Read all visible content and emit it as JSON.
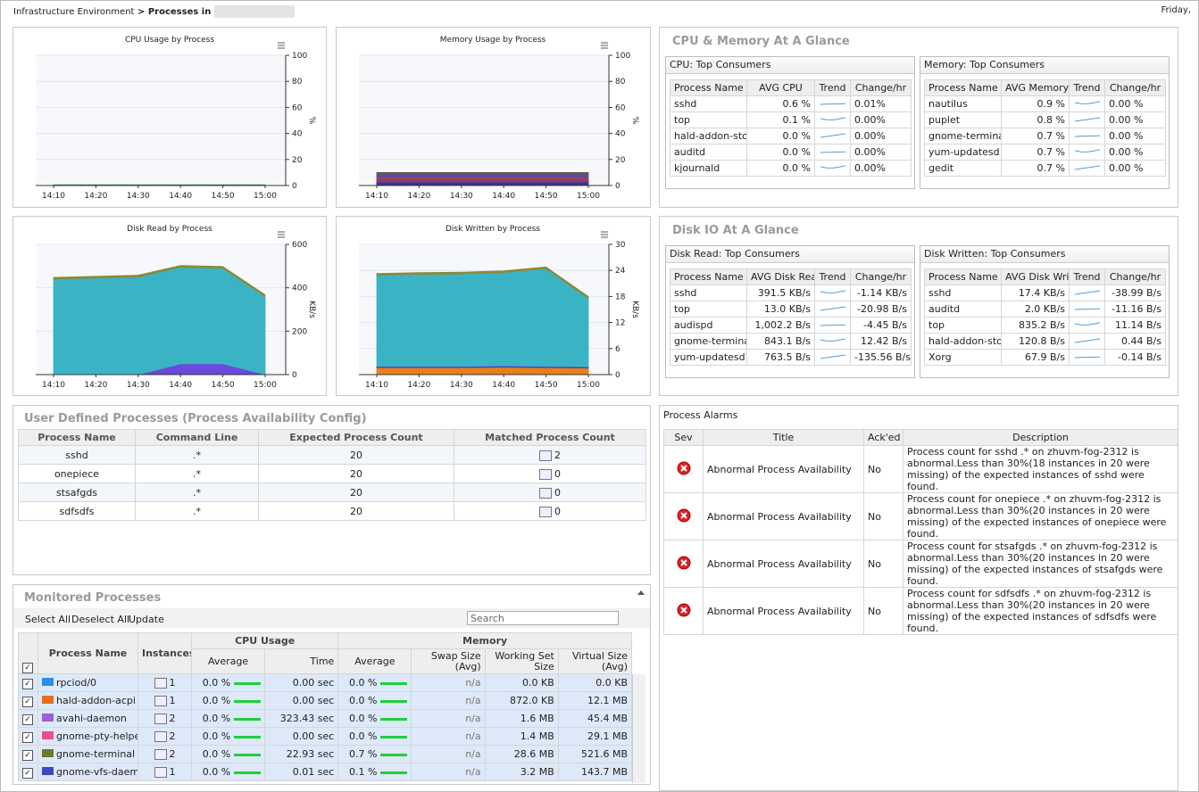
{
  "breadcrumb": {
    "root": "Infrastructure Environment",
    "current": "Processes in"
  },
  "date": "Friday,",
  "charts": [
    {
      "type": "area",
      "title": "CPU Usage by Process",
      "x": [
        "14:10",
        "14:20",
        "14:30",
        "14:40",
        "14:50",
        "15:00"
      ],
      "ylim": [
        0,
        100
      ],
      "yticks": [
        0,
        20,
        40,
        60,
        80,
        100
      ],
      "y_label": "%",
      "stacked": true,
      "series": [
        {
          "color": "#2e8b57",
          "values": [
            0.6,
            0.6,
            0.6,
            0.6,
            0.6,
            0.6
          ]
        }
      ]
    },
    {
      "type": "area",
      "title": "Memory Usage by Process",
      "x": [
        "14:10",
        "14:20",
        "14:30",
        "14:40",
        "14:50",
        "15:00"
      ],
      "ylim": [
        0,
        100
      ],
      "yticks": [
        0,
        20,
        40,
        60,
        80,
        100
      ],
      "y_label": "%",
      "stacked": true,
      "series": [
        {
          "color": "#34348f",
          "values": [
            2.5,
            2.5,
            2.5,
            2.5,
            2.5,
            2.5
          ]
        },
        {
          "color": "#7d3a86",
          "values": [
            2,
            2,
            2,
            2,
            2,
            2
          ]
        },
        {
          "color": "#9c4248",
          "values": [
            2,
            2,
            2,
            2,
            2,
            2
          ]
        },
        {
          "color": "#5a4aa8",
          "values": [
            2.5,
            2.5,
            2.5,
            2.5,
            2.5,
            2.5
          ]
        },
        {
          "color": "#6b5a3a",
          "values": [
            1,
            1,
            1,
            1,
            1,
            1
          ]
        }
      ]
    },
    {
      "type": "area",
      "title": "Disk Read by Process",
      "x": [
        "14:10",
        "14:20",
        "14:30",
        "14:40",
        "14:50",
        "15:00"
      ],
      "ylim": [
        0,
        600
      ],
      "yticks": [
        0,
        200,
        400,
        600
      ],
      "y_label": "KB/s",
      "stacked": true,
      "series": [
        {
          "color": "#6a4ad8",
          "values": [
            0,
            0,
            0,
            50,
            50,
            0
          ]
        },
        {
          "color": "#3ab4c4",
          "values": [
            440,
            445,
            450,
            445,
            440,
            360
          ]
        },
        {
          "color": "#8a8a3a",
          "values": [
            8,
            8,
            8,
            8,
            8,
            8
          ]
        }
      ]
    },
    {
      "type": "area",
      "title": "Disk Written by Process",
      "x": [
        "14:10",
        "14:20",
        "14:30",
        "14:40",
        "14:50",
        "15:00"
      ],
      "ylim": [
        0,
        30
      ],
      "yticks": [
        0,
        6,
        12,
        18,
        24,
        30
      ],
      "y_label": "KB/s",
      "stacked": true,
      "series": [
        {
          "color": "#e8801a",
          "values": [
            1.6,
            1.6,
            1.6,
            1.7,
            1.6,
            1.5
          ]
        },
        {
          "color": "#5a3ab8",
          "values": [
            0.3,
            0.3,
            0.3,
            0.3,
            0.3,
            0.3
          ]
        },
        {
          "color": "#3ab4c4",
          "values": [
            21,
            21.2,
            21.3,
            21.5,
            22.5,
            15.8
          ]
        },
        {
          "color": "#8a8a3a",
          "values": [
            0.4,
            0.4,
            0.4,
            0.4,
            0.4,
            0.4
          ]
        }
      ]
    }
  ],
  "cpu_memory_glance": {
    "title": "CPU & Memory At A Glance",
    "tables": [
      {
        "title": "CPU: Top Consumers",
        "columns": [
          "Process Name",
          "AVG CPU",
          "Trend",
          "Change/hr"
        ],
        "rows": [
          [
            "sshd",
            "0.6 %",
            "0.01%"
          ],
          [
            "top",
            "0.1 %",
            "0.00%"
          ],
          [
            "hald-addon-stor",
            "0.0 %",
            "0.00%"
          ],
          [
            "auditd",
            "0.0 %",
            "0.00%"
          ],
          [
            "kjournald",
            "0.0 %",
            "0.00%"
          ]
        ]
      },
      {
        "title": "Memory: Top Consumers",
        "columns": [
          "Process Name",
          "AVG Memory",
          "Trend",
          "Change/hr"
        ],
        "rows": [
          [
            "nautilus",
            "0.9 %",
            "0.00 %"
          ],
          [
            "puplet",
            "0.8 %",
            "0.00 %"
          ],
          [
            "gnome-terminal",
            "0.7 %",
            "0.00 %"
          ],
          [
            "yum-updatesd",
            "0.7 %",
            "0.00 %"
          ],
          [
            "gedit",
            "0.7 %",
            "0.00 %"
          ]
        ]
      }
    ]
  },
  "disk_glance": {
    "title": "Disk IO At A Glance",
    "tables": [
      {
        "title": "Disk Read: Top Consumers",
        "columns": [
          "Process Name",
          "AVG Disk Read",
          "Trend",
          "Change/hr"
        ],
        "rows": [
          [
            "sshd",
            "391.5 KB/s",
            "-1.14 KB/s"
          ],
          [
            "top",
            "13.0 KB/s",
            "-20.98 B/s"
          ],
          [
            "audispd",
            "1,002.2 B/s",
            "-4.45 B/s"
          ],
          [
            "gnome-terminal",
            "843.1 B/s",
            "12.42 B/s"
          ],
          [
            "yum-updatesd",
            "763.5 B/s",
            "-135.56 B/s"
          ]
        ]
      },
      {
        "title": "Disk Written: Top Consumers",
        "columns": [
          "Process Name",
          "AVG Disk Written",
          "Trend",
          "Change/hr"
        ],
        "rows": [
          [
            "sshd",
            "17.4 KB/s",
            "-38.99 B/s"
          ],
          [
            "auditd",
            "2.0 KB/s",
            "-11.16 B/s"
          ],
          [
            "top",
            "835.2 B/s",
            "11.14 B/s"
          ],
          [
            "hald-addon-stor",
            "120.8 B/s",
            "0.44 B/s"
          ],
          [
            "Xorg",
            "67.9 B/s",
            "-0.14 B/s"
          ]
        ]
      }
    ]
  },
  "user_defined": {
    "title": "User Defined Processes (Process Availability Config)",
    "columns": [
      "Process Name",
      "Command Line",
      "Expected Process Count",
      "Matched Process Count"
    ],
    "rows": [
      [
        "sshd",
        ".*",
        "20",
        "2"
      ],
      [
        "onepiece",
        ".*",
        "20",
        "0"
      ],
      [
        "stsafgds",
        ".*",
        "20",
        "0"
      ],
      [
        "sdfsdfs",
        ".*",
        "20",
        "0"
      ]
    ]
  },
  "alarms": {
    "title": "Process Alarms",
    "columns": [
      "Sev",
      "Title",
      "Ack'ed",
      "Description"
    ],
    "rows": [
      {
        "title": "Abnormal Process Availability",
        "acked": "No",
        "description": "Process count for sshd .* on zhuvm-fog-2312 is abnormal.Less than 30%(18 instances in 20 were missing) of the expected instances of sshd were found."
      },
      {
        "title": "Abnormal Process Availability",
        "acked": "No",
        "description": "Process count for onepiece .* on zhuvm-fog-2312 is abnormal.Less than 30%(20 instances in 20 were missing) of the expected instances of onepiece were found."
      },
      {
        "title": "Abnormal Process Availability",
        "acked": "No",
        "description": "Process count for stsafgds .* on zhuvm-fog-2312 is abnormal.Less than 30%(20 instances in 20 were missing) of the expected instances of stsafgds were found."
      },
      {
        "title": "Abnormal Process Availability",
        "acked": "No",
        "description": "Process count for sdfsdfs .* on zhuvm-fog-2312 is abnormal.Less than 30%(20 instances in 20 were missing) of the expected instances of sdfsdfs were found."
      }
    ]
  },
  "monitored": {
    "title": "Monitored Processes",
    "toolbar": [
      "Select All",
      "Deselect All",
      "Update"
    ],
    "search": "Search",
    "columns": [
      "Process Name",
      "Instances"
    ],
    "groups": [
      {
        "name": "CPU Usage",
        "columns": [
          "Average",
          "Time"
        ]
      },
      {
        "name": "Memory",
        "columns": [
          "Average",
          "Swap Size (Avg)",
          "Working Set Size",
          "Virtual Size (Avg)"
        ]
      }
    ],
    "rows": [
      {
        "name": "rpciod/0",
        "color": "#2f8de4",
        "instances": "1",
        "cpu_avg": "0.0 %",
        "cpu_time": "0.00 sec",
        "mem_avg": "0.0 %",
        "swap": "n/a",
        "working_set": "0.0 KB",
        "virtual": "0.0 KB"
      },
      {
        "name": "hald-addon-acpi",
        "color": "#e07020",
        "instances": "1",
        "cpu_avg": "0.0 %",
        "cpu_time": "0.00 sec",
        "mem_avg": "0.0 %",
        "swap": "n/a",
        "working_set": "872.0 KB",
        "virtual": "12.1 MB"
      },
      {
        "name": "avahi-daemon",
        "color": "#9a62d2",
        "instances": "2",
        "cpu_avg": "0.0 %",
        "cpu_time": "323.43 sec",
        "mem_avg": "0.0 %",
        "swap": "n/a",
        "working_set": "1.6 MB",
        "virtual": "45.4 MB"
      },
      {
        "name": "gnome-pty-helpe",
        "color": "#ea4f8b",
        "instances": "2",
        "cpu_avg": "0.0 %",
        "cpu_time": "0.00 sec",
        "mem_avg": "0.0 %",
        "swap": "n/a",
        "working_set": "1.4 MB",
        "virtual": "29.1 MB"
      },
      {
        "name": "gnome-terminal",
        "color": "#6b7a2a",
        "instances": "2",
        "cpu_avg": "0.0 %",
        "cpu_time": "22.93 sec",
        "mem_avg": "0.7 %",
        "swap": "n/a",
        "working_set": "28.6 MB",
        "virtual": "521.6 MB"
      },
      {
        "name": "gnome-vfs-daemo",
        "color": "#3a4ac0",
        "instances": "1",
        "cpu_avg": "0.0 %",
        "cpu_time": "0.01 sec",
        "mem_avg": "0.1 %",
        "swap": "n/a",
        "working_set": "3.2 MB",
        "virtual": "143.7 MB"
      }
    ]
  }
}
